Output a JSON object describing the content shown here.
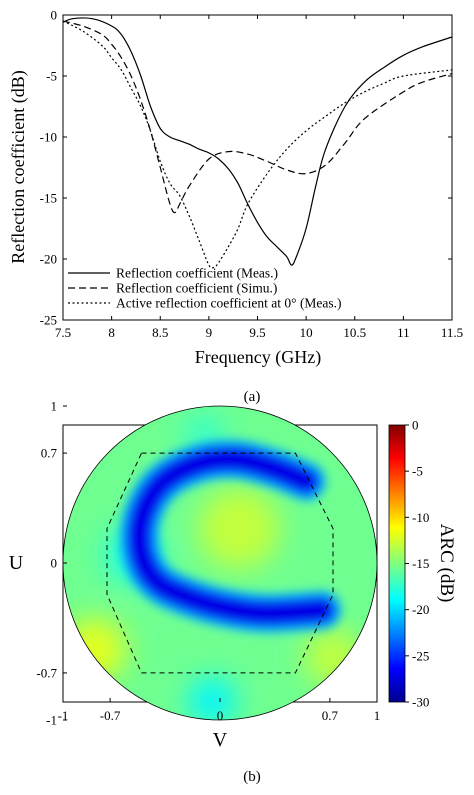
{
  "chart_data": [
    {
      "type": "line",
      "panel_label": "(a)",
      "xlabel": "Frequency (GHz)",
      "ylabel": "Reflection coefficient (dB)",
      "xlim": [
        7.5,
        11.5
      ],
      "ylim": [
        -25,
        0
      ],
      "xticks": [
        7.5,
        8,
        8.5,
        9,
        9.5,
        10,
        10.5,
        11,
        11.5
      ],
      "yticks": [
        0,
        -5,
        -10,
        -15,
        -20,
        -25
      ],
      "xtick_labels": [
        "7.5",
        "8",
        "8.5",
        "9",
        "9.5",
        "10",
        "10.5",
        "11",
        "11.5"
      ],
      "ytick_labels": [
        "0",
        "-5",
        "-10",
        "-15",
        "-20",
        "-25"
      ],
      "grid": false,
      "legend_position": "bottom-left",
      "series": [
        {
          "name": "Reflection coefficient (Meas.)",
          "style": "solid",
          "x": [
            7.5,
            7.6,
            7.8,
            8.0,
            8.1,
            8.2,
            8.3,
            8.4,
            8.5,
            8.6,
            8.7,
            8.8,
            8.9,
            9.0,
            9.1,
            9.2,
            9.3,
            9.4,
            9.5,
            9.6,
            9.7,
            9.8,
            9.85,
            9.9,
            10.0,
            10.1,
            10.2,
            10.4,
            10.6,
            10.8,
            11.0,
            11.2,
            11.5
          ],
          "y": [
            -0.6,
            -0.3,
            -0.3,
            -0.9,
            -1.6,
            -3.0,
            -5.0,
            -7.5,
            -9.3,
            -10.0,
            -10.3,
            -10.6,
            -11.0,
            -11.3,
            -11.8,
            -12.6,
            -13.8,
            -15.5,
            -17.0,
            -18.2,
            -19.0,
            -19.8,
            -20.5,
            -19.8,
            -17.5,
            -14.0,
            -11.0,
            -7.5,
            -5.5,
            -4.3,
            -3.3,
            -2.6,
            -1.8
          ]
        },
        {
          "name": "Reflection coefficient (Simu.)",
          "style": "dashed",
          "x": [
            7.5,
            7.7,
            7.9,
            8.0,
            8.1,
            8.2,
            8.3,
            8.4,
            8.5,
            8.6,
            8.65,
            8.7,
            8.8,
            9.0,
            9.2,
            9.4,
            9.6,
            9.8,
            10.0,
            10.2,
            10.4,
            10.6,
            11.0,
            11.2,
            11.5
          ],
          "y": [
            -0.5,
            -0.9,
            -1.6,
            -2.4,
            -3.5,
            -5.0,
            -7.0,
            -9.5,
            -12.5,
            -15.5,
            -16.2,
            -15.5,
            -14.0,
            -11.8,
            -11.2,
            -11.4,
            -12.0,
            -12.7,
            -13.0,
            -12.3,
            -10.5,
            -8.5,
            -6.3,
            -5.5,
            -4.8
          ]
        },
        {
          "name": "Active reflection coefficient at 0° (Meas.)",
          "style": "dotted",
          "x": [
            7.5,
            7.7,
            7.9,
            8.0,
            8.1,
            8.2,
            8.3,
            8.4,
            8.5,
            8.6,
            8.7,
            8.8,
            8.9,
            9.0,
            9.05,
            9.1,
            9.2,
            9.3,
            9.4,
            9.6,
            9.8,
            10.0,
            10.2,
            10.4,
            10.6,
            10.8,
            11.0,
            11.5
          ],
          "y": [
            -0.5,
            -1.3,
            -2.5,
            -3.5,
            -4.5,
            -6.0,
            -7.5,
            -9.5,
            -12.0,
            -13.8,
            -14.8,
            -16.5,
            -18.5,
            -20.5,
            -20.7,
            -20.3,
            -19.0,
            -17.5,
            -15.5,
            -13.0,
            -11.0,
            -9.5,
            -8.3,
            -7.2,
            -6.3,
            -5.6,
            -5.0,
            -4.5
          ]
        }
      ]
    },
    {
      "type": "heatmap",
      "panel_label": "(b)",
      "xlabel": "V",
      "ylabel": "U",
      "xlim": [
        -1,
        1
      ],
      "ylim": [
        -1,
        1
      ],
      "xtick_labels": [
        "-1",
        "-0.7",
        "0",
        "0.7",
        "1"
      ],
      "ytick_labels": [
        "1",
        "0.7",
        "0",
        "-0.7",
        "-1"
      ],
      "colorbar": {
        "label": "ARC (dB)",
        "range": [
          -30,
          0
        ],
        "tick_labels": [
          "0",
          "-5",
          "-10",
          "-15",
          "-20",
          "-25",
          "-30"
        ],
        "colormap": "jet"
      },
      "background_dB": -15.5,
      "boundary": {
        "style": "dashed",
        "points_vu": [
          [
            -0.5,
            0.7
          ],
          [
            0.48,
            0.7
          ],
          [
            0.72,
            0.22
          ],
          [
            0.72,
            -0.2
          ],
          [
            0.48,
            -0.7
          ],
          [
            -0.5,
            -0.7
          ],
          [
            -0.72,
            -0.2
          ],
          [
            -0.72,
            0.22
          ]
        ]
      },
      "features": [
        {
          "kind": "blue_c_band",
          "value_dB": -27,
          "path_vu": [
            [
              0.55,
              0.52
            ],
            [
              0.35,
              0.6
            ],
            [
              0.1,
              0.66
            ],
            [
              -0.15,
              0.63
            ],
            [
              -0.38,
              0.5
            ],
            [
              -0.5,
              0.28
            ],
            [
              -0.5,
              0.05
            ],
            [
              -0.4,
              -0.12
            ],
            [
              -0.2,
              -0.22
            ],
            [
              0.05,
              -0.29
            ],
            [
              0.3,
              -0.32
            ],
            [
              0.65,
              -0.3
            ]
          ],
          "width": 0.13
        },
        {
          "kind": "yellow_center",
          "value_dB": -13,
          "center_vu": [
            0.12,
            0.22
          ],
          "radius": 0.26
        },
        {
          "kind": "light_left",
          "value_dB": -18,
          "center_vu": [
            -0.55,
            0.05
          ],
          "radius": 0.18
        },
        {
          "kind": "light_bottom",
          "value_dB": -19,
          "center_vu": [
            -0.05,
            -0.88
          ],
          "radius": 0.15
        },
        {
          "kind": "yellow_lower_left",
          "value_dB": -12,
          "center_vu": [
            -0.8,
            -0.55
          ],
          "radius": 0.2
        },
        {
          "kind": "yellow_lower_right",
          "value_dB": -13,
          "center_vu": [
            0.72,
            -0.6
          ],
          "radius": 0.18
        },
        {
          "kind": "light_upper",
          "value_dB": -17.5,
          "center_vu": [
            -0.1,
            0.82
          ],
          "radius": 0.12
        }
      ]
    }
  ]
}
